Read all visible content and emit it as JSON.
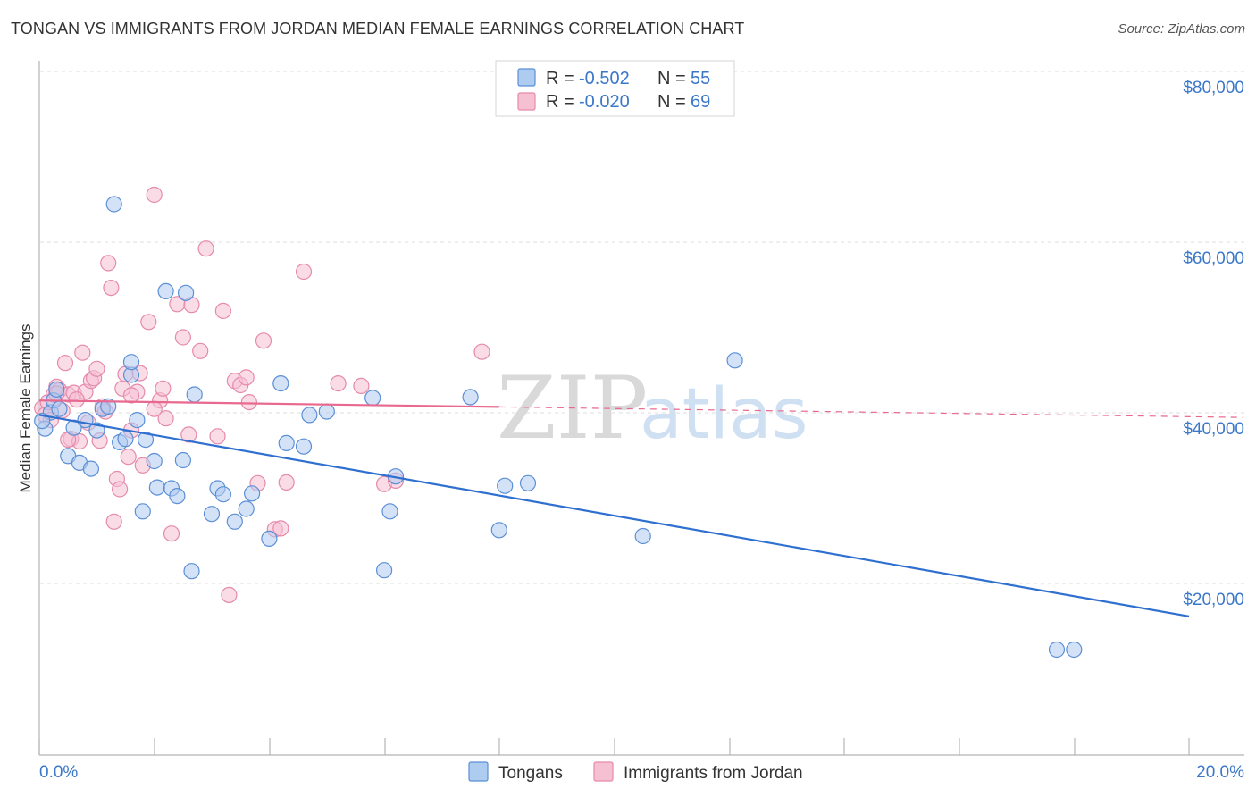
{
  "header": {
    "title": "TONGAN VS IMMIGRANTS FROM JORDAN MEDIAN FEMALE EARNINGS CORRELATION CHART",
    "source": "Source: ZipAtlas.com"
  },
  "watermark": {
    "zip": "ZIP",
    "atlas": "atlas"
  },
  "legend": {
    "tongans": {
      "r_label": "R = ",
      "r_value": "-0.502",
      "n_label": "N = ",
      "n_value": "55"
    },
    "jordan": {
      "r_label": "R = ",
      "r_value": "-0.020",
      "n_label": "N = ",
      "n_value": "69"
    }
  },
  "colors": {
    "tongans_fill": "#aecbf0",
    "tongans_stroke": "#5b8fd6",
    "tongans_line": "#2e6fd0",
    "jordan_fill": "#f6c0d3",
    "jordan_stroke": "#e58aab",
    "jordan_line": "#e8688f",
    "axis_text": "#3b78c9"
  },
  "chart_data": {
    "type": "scatter",
    "title": "TONGAN VS IMMIGRANTS FROM JORDAN MEDIAN FEMALE EARNINGS CORRELATION CHART",
    "xlabel": "",
    "ylabel": "Median Female Earnings",
    "xlim": [
      0,
      20
    ],
    "ylim": [
      0,
      82000
    ],
    "x_tick_labels": [
      "0.0%",
      "20.0%"
    ],
    "y_ticks": [
      20000,
      40000,
      60000,
      80000
    ],
    "y_tick_labels": [
      "$20,000",
      "$40,000",
      "$60,000",
      "$80,000"
    ],
    "grid": true,
    "legend_position": "top-center",
    "bottom_legend": [
      "Tongans",
      "Immigrants from Jordan"
    ],
    "series": [
      {
        "name": "Tongans",
        "r": -0.502,
        "n": 55,
        "trend": {
          "x": [
            0.0,
            20.0
          ],
          "y": [
            39800,
            16200
          ],
          "solid_until": 20.0
        },
        "points": [
          [
            0.1,
            38200
          ],
          [
            0.2,
            40100
          ],
          [
            0.25,
            41500
          ],
          [
            0.3,
            42800
          ],
          [
            0.35,
            40500
          ],
          [
            0.5,
            35000
          ],
          [
            0.6,
            38300
          ],
          [
            0.7,
            34200
          ],
          [
            0.8,
            39200
          ],
          [
            0.9,
            33500
          ],
          [
            1.0,
            38000
          ],
          [
            1.1,
            40500
          ],
          [
            1.2,
            40800
          ],
          [
            1.3,
            64500
          ],
          [
            1.4,
            36600
          ],
          [
            1.5,
            37000
          ],
          [
            1.6,
            44500
          ],
          [
            1.6,
            46000
          ],
          [
            1.7,
            39200
          ],
          [
            1.8,
            28500
          ],
          [
            1.85,
            36900
          ],
          [
            2.0,
            34400
          ],
          [
            2.05,
            31300
          ],
          [
            2.2,
            54300
          ],
          [
            2.3,
            31200
          ],
          [
            2.4,
            30300
          ],
          [
            2.5,
            34500
          ],
          [
            2.55,
            54100
          ],
          [
            2.65,
            21500
          ],
          [
            2.7,
            42200
          ],
          [
            3.0,
            28200
          ],
          [
            3.1,
            31200
          ],
          [
            3.2,
            30500
          ],
          [
            3.4,
            27300
          ],
          [
            3.6,
            28800
          ],
          [
            3.7,
            30600
          ],
          [
            4.0,
            25300
          ],
          [
            4.2,
            43500
          ],
          [
            4.3,
            36500
          ],
          [
            4.6,
            36100
          ],
          [
            4.7,
            39800
          ],
          [
            5.0,
            40200
          ],
          [
            5.8,
            41800
          ],
          [
            6.0,
            21600
          ],
          [
            6.1,
            28500
          ],
          [
            6.2,
            32600
          ],
          [
            7.5,
            41900
          ],
          [
            8.0,
            26300
          ],
          [
            8.1,
            31500
          ],
          [
            8.5,
            31800
          ],
          [
            10.5,
            25600
          ],
          [
            12.1,
            46200
          ],
          [
            17.7,
            12300
          ],
          [
            18.0,
            12300
          ],
          [
            0.05,
            39100
          ]
        ]
      },
      {
        "name": "Immigrants from Jordan",
        "r": -0.02,
        "n": 69,
        "trend": {
          "x": [
            0.0,
            20.0
          ],
          "y": [
            41500,
            39600
          ],
          "solid_until": 8.0
        },
        "points": [
          [
            0.05,
            40600
          ],
          [
            0.1,
            39800
          ],
          [
            0.15,
            41300
          ],
          [
            0.2,
            39200
          ],
          [
            0.25,
            42200
          ],
          [
            0.3,
            43100
          ],
          [
            0.35,
            42700
          ],
          [
            0.4,
            40300
          ],
          [
            0.45,
            45900
          ],
          [
            0.5,
            42200
          ],
          [
            0.55,
            37000
          ],
          [
            0.6,
            42400
          ],
          [
            0.7,
            36700
          ],
          [
            0.75,
            47100
          ],
          [
            0.8,
            42500
          ],
          [
            0.9,
            43800
          ],
          [
            0.95,
            44100
          ],
          [
            1.0,
            45200
          ],
          [
            1.05,
            36800
          ],
          [
            1.1,
            40800
          ],
          [
            1.15,
            40200
          ],
          [
            1.2,
            57600
          ],
          [
            1.25,
            54700
          ],
          [
            1.3,
            27300
          ],
          [
            1.35,
            32300
          ],
          [
            1.4,
            31100
          ],
          [
            1.45,
            42900
          ],
          [
            1.5,
            44600
          ],
          [
            1.55,
            34900
          ],
          [
            1.6,
            38000
          ],
          [
            1.7,
            42500
          ],
          [
            1.75,
            44700
          ],
          [
            1.8,
            33900
          ],
          [
            1.9,
            50700
          ],
          [
            2.0,
            65600
          ],
          [
            2.1,
            41500
          ],
          [
            2.15,
            42900
          ],
          [
            2.2,
            39400
          ],
          [
            2.3,
            25900
          ],
          [
            2.4,
            52800
          ],
          [
            2.5,
            48900
          ],
          [
            2.6,
            37500
          ],
          [
            2.65,
            52700
          ],
          [
            2.8,
            47300
          ],
          [
            2.9,
            59300
          ],
          [
            3.1,
            37300
          ],
          [
            3.2,
            52000
          ],
          [
            3.3,
            18700
          ],
          [
            3.4,
            43800
          ],
          [
            3.5,
            43300
          ],
          [
            3.6,
            44200
          ],
          [
            3.65,
            41300
          ],
          [
            3.8,
            31800
          ],
          [
            3.9,
            48500
          ],
          [
            4.1,
            26400
          ],
          [
            4.2,
            26500
          ],
          [
            4.3,
            31900
          ],
          [
            4.6,
            56600
          ],
          [
            5.2,
            43500
          ],
          [
            5.6,
            43200
          ],
          [
            6.0,
            31700
          ],
          [
            6.2,
            32100
          ],
          [
            7.7,
            47200
          ],
          [
            0.3,
            42300
          ],
          [
            0.5,
            36900
          ],
          [
            0.65,
            41600
          ],
          [
            0.85,
            38900
          ],
          [
            1.6,
            42100
          ],
          [
            2.0,
            40500
          ]
        ]
      }
    ]
  }
}
